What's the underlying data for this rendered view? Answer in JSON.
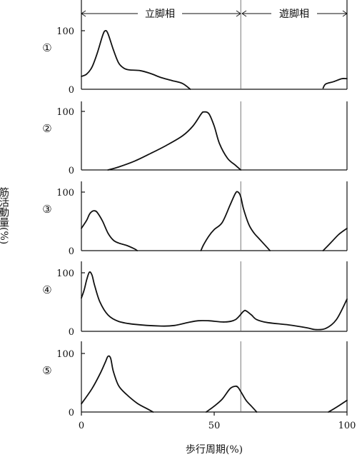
{
  "chart_data": {
    "type": "line",
    "xlabel": "歩行周期(%)",
    "ylabel": "筋活動量(%)",
    "xlim": [
      0,
      100
    ],
    "ylim": [
      0,
      100
    ],
    "x_ticks": [
      "0",
      "50",
      "100"
    ],
    "y_ticks": [
      "0",
      "100"
    ],
    "phase_divider_x": 60,
    "phases": [
      {
        "label": "立脚相",
        "start": 0,
        "end": 60
      },
      {
        "label": "遊脚相",
        "start": 60,
        "end": 100
      }
    ],
    "panels": [
      {
        "marker": "①",
        "segments": [
          [
            [
              0,
              22
            ],
            [
              2,
              26
            ],
            [
              4,
              38
            ],
            [
              6,
              62
            ],
            [
              8,
              92
            ],
            [
              9,
              100
            ],
            [
              10,
              95
            ],
            [
              12,
              68
            ],
            [
              14,
              45
            ],
            [
              16,
              36
            ],
            [
              18,
              33
            ],
            [
              22,
              32
            ],
            [
              26,
              27
            ],
            [
              30,
              20
            ],
            [
              34,
              15
            ],
            [
              38,
              10
            ],
            [
              41,
              0
            ]
          ],
          [
            [
              91,
              2
            ],
            [
              92,
              9
            ],
            [
              95,
              13
            ],
            [
              98,
              18
            ],
            [
              100,
              18
            ]
          ]
        ]
      },
      {
        "marker": "②",
        "segments": [
          [
            [
              10,
              0
            ],
            [
              14,
              5
            ],
            [
              20,
              15
            ],
            [
              26,
              28
            ],
            [
              32,
              42
            ],
            [
              38,
              58
            ],
            [
              42,
              75
            ],
            [
              45,
              95
            ],
            [
              46,
              99
            ],
            [
              48,
              96
            ],
            [
              50,
              75
            ],
            [
              52,
              45
            ],
            [
              55,
              20
            ],
            [
              58,
              8
            ],
            [
              60,
              0
            ]
          ]
        ]
      },
      {
        "marker": "③",
        "segments": [
          [
            [
              0,
              38
            ],
            [
              2,
              52
            ],
            [
              3,
              62
            ],
            [
              4,
              67
            ],
            [
              5,
              68
            ],
            [
              6,
              65
            ],
            [
              8,
              50
            ],
            [
              10,
              30
            ],
            [
              12,
              18
            ],
            [
              14,
              13
            ],
            [
              17,
              9
            ],
            [
              20,
              3
            ],
            [
              21,
              0
            ]
          ],
          [
            [
              45,
              0
            ],
            [
              46,
              10
            ],
            [
              48,
              25
            ],
            [
              50,
              36
            ],
            [
              53,
              48
            ],
            [
              56,
              78
            ],
            [
              58,
              98
            ],
            [
              59,
              100
            ],
            [
              60,
              92
            ],
            [
              61,
              72
            ],
            [
              63,
              45
            ],
            [
              65,
              30
            ],
            [
              67,
              20
            ],
            [
              69,
              10
            ],
            [
              71,
              0
            ]
          ],
          [
            [
              91,
              0
            ],
            [
              94,
              14
            ],
            [
              97,
              28
            ],
            [
              100,
              38
            ]
          ]
        ]
      },
      {
        "marker": "④",
        "segments": [
          [
            [
              0,
              57
            ],
            [
              1,
              70
            ],
            [
              2,
              88
            ],
            [
              3,
              101
            ],
            [
              4,
              96
            ],
            [
              5,
              78
            ],
            [
              7,
              50
            ],
            [
              10,
              28
            ],
            [
              14,
              17
            ],
            [
              20,
              12
            ],
            [
              30,
              9
            ],
            [
              35,
              10
            ],
            [
              40,
              15
            ],
            [
              44,
              18
            ],
            [
              48,
              18
            ],
            [
              54,
              16
            ],
            [
              58,
              20
            ],
            [
              61,
              34
            ],
            [
              62,
              35
            ],
            [
              64,
              28
            ],
            [
              66,
              20
            ],
            [
              70,
              15
            ],
            [
              78,
              11
            ],
            [
              85,
              6
            ],
            [
              88,
              3
            ],
            [
              92,
              5
            ],
            [
              96,
              20
            ],
            [
              100,
              55
            ]
          ]
        ]
      },
      {
        "marker": "⑤",
        "segments": [
          [
            [
              0,
              14
            ],
            [
              4,
              40
            ],
            [
              7,
              65
            ],
            [
              9,
              85
            ],
            [
              10,
              95
            ],
            [
              11,
              92
            ],
            [
              12,
              70
            ],
            [
              14,
              45
            ],
            [
              17,
              30
            ],
            [
              21,
              15
            ],
            [
              25,
              5
            ],
            [
              27,
              0
            ]
          ],
          [
            [
              47,
              0
            ],
            [
              50,
              10
            ],
            [
              53,
              22
            ],
            [
              56,
              40
            ],
            [
              58,
              44
            ],
            [
              59,
              42
            ],
            [
              60,
              35
            ],
            [
              62,
              20
            ],
            [
              64,
              10
            ],
            [
              66,
              0
            ]
          ],
          [
            [
              93,
              0
            ],
            [
              96,
              8
            ],
            [
              100,
              20
            ]
          ]
        ]
      }
    ]
  }
}
